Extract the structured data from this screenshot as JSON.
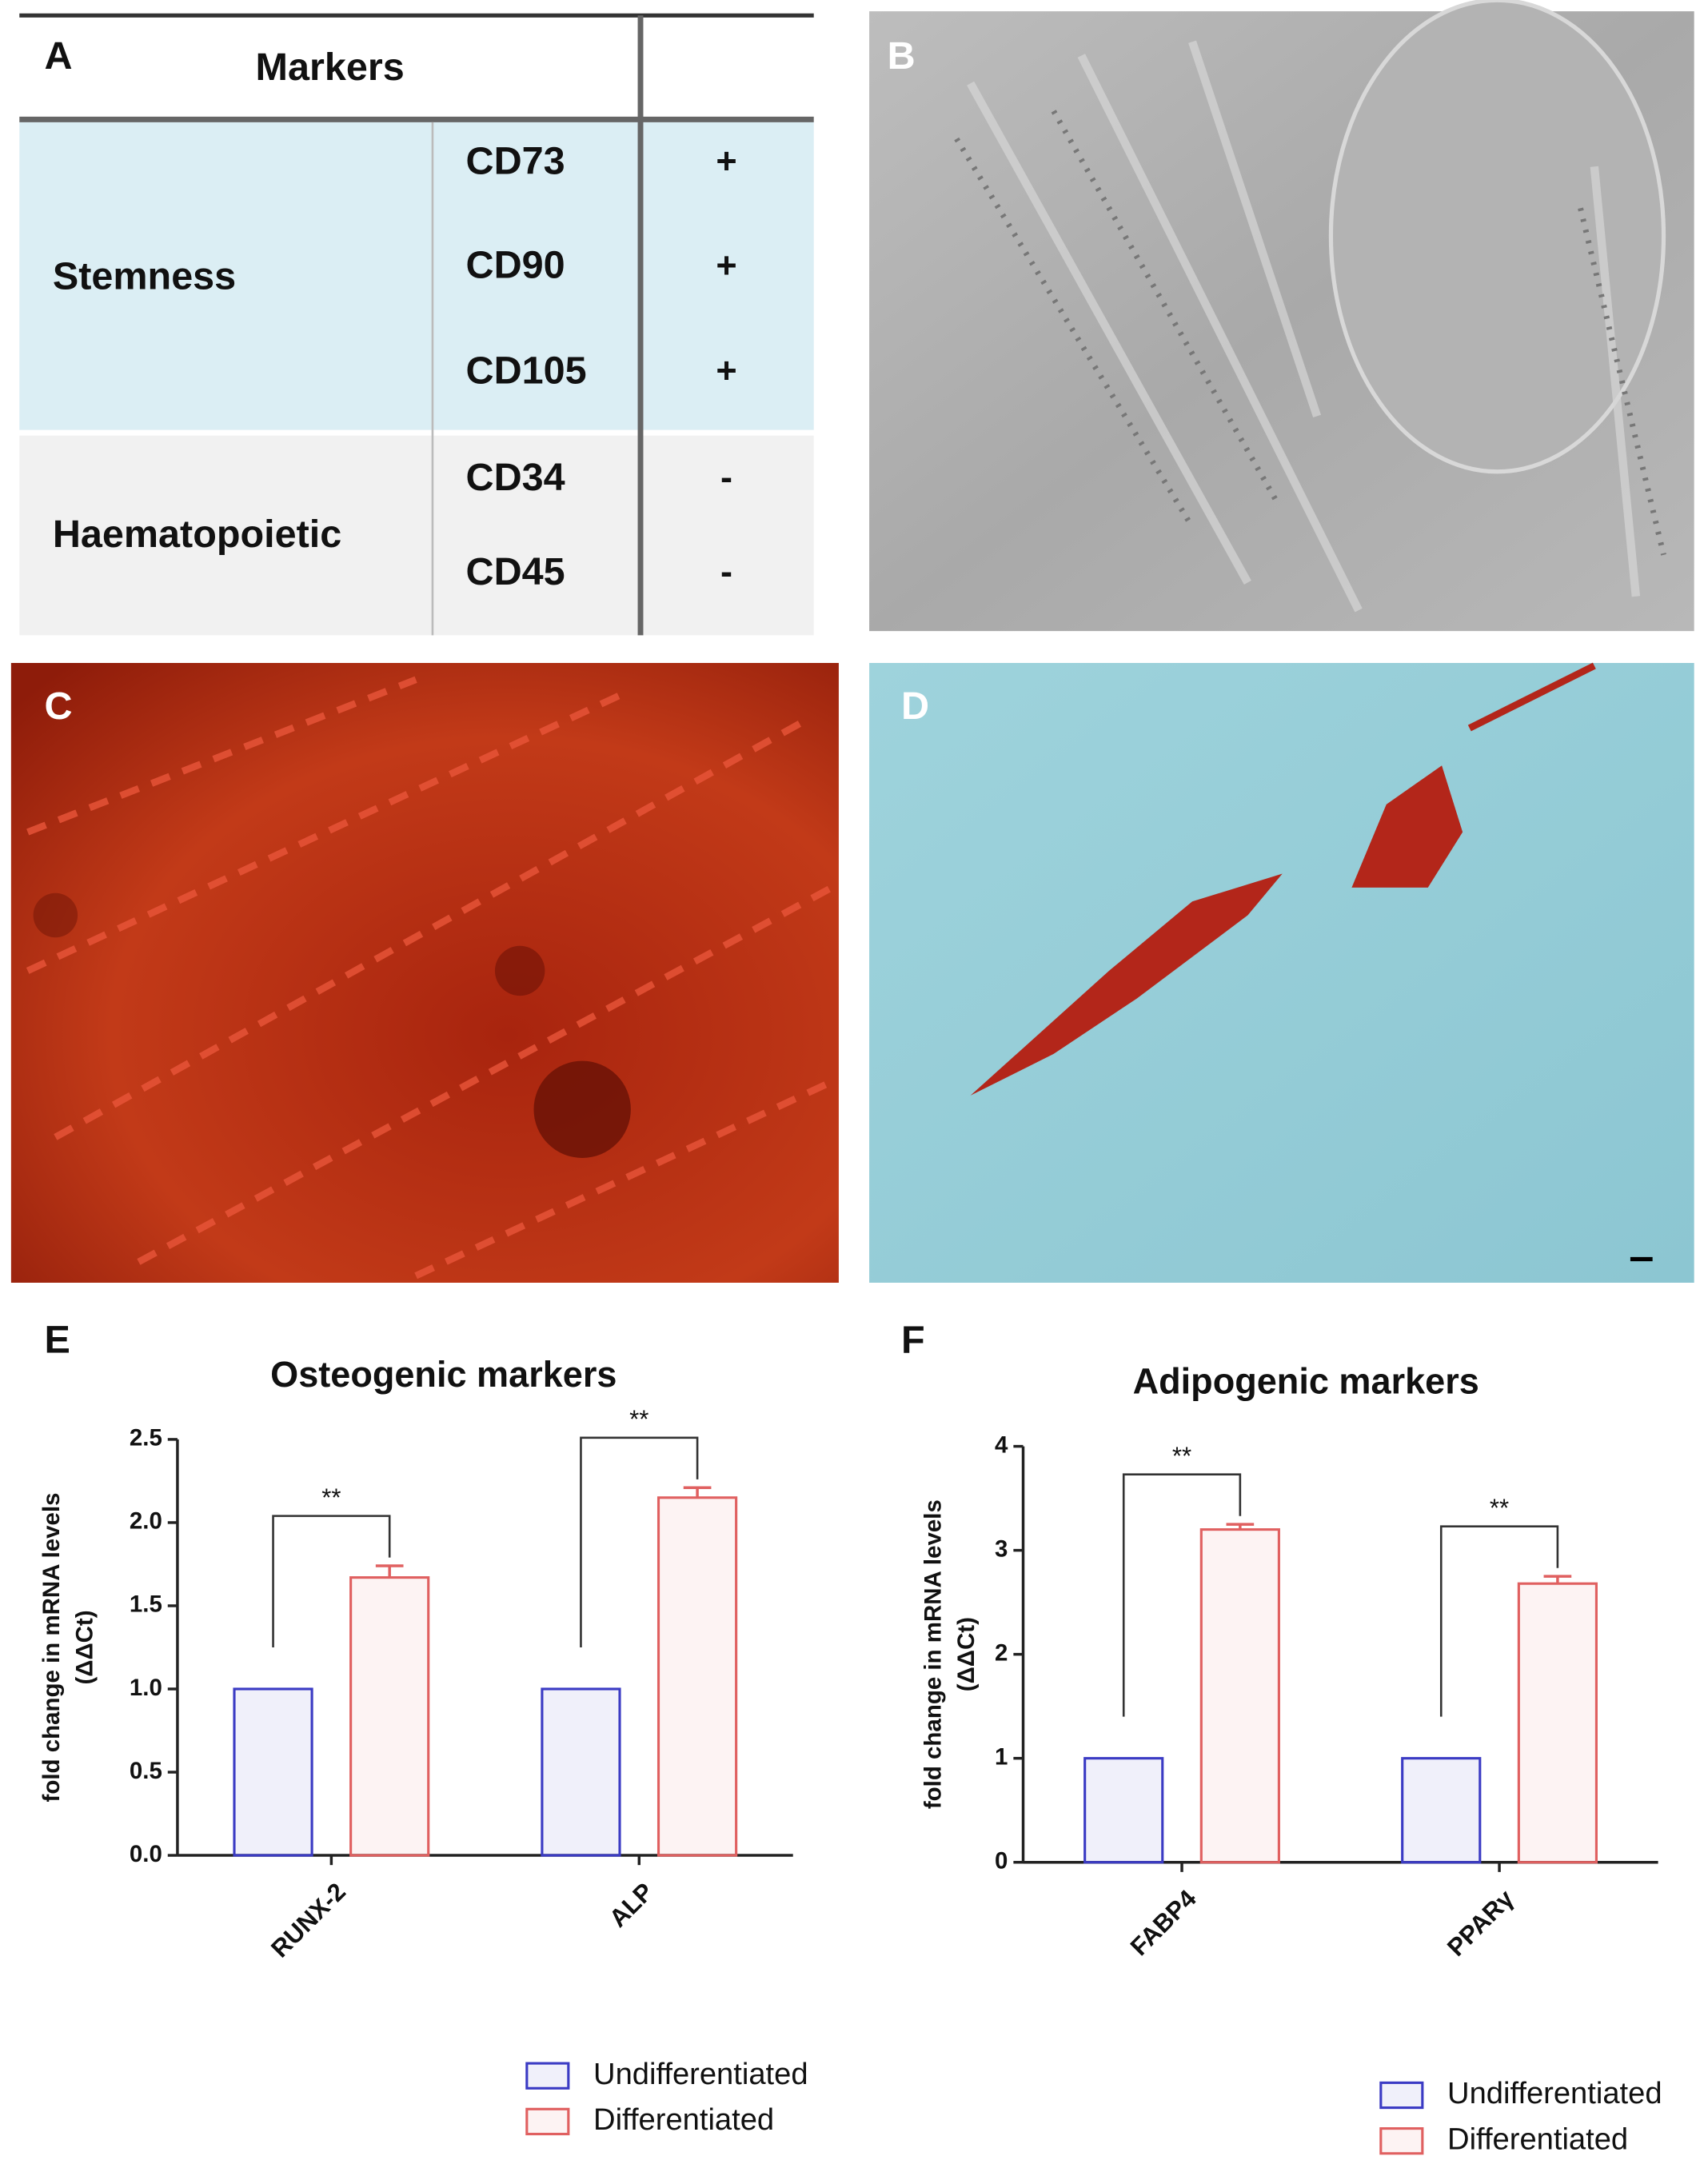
{
  "table": {
    "panel_label": "A",
    "header": "Markers",
    "groups": [
      {
        "name": "Stemness",
        "markers": [
          {
            "name": "CD73",
            "expression": "+"
          },
          {
            "name": "CD90",
            "expression": "+"
          },
          {
            "name": "CD105",
            "expression": "+"
          }
        ]
      },
      {
        "name": "Haematopoietic",
        "markers": [
          {
            "name": "CD34",
            "expression": "-"
          },
          {
            "name": "CD45",
            "expression": "-"
          }
        ]
      }
    ]
  },
  "images": [
    {
      "panel_label": "B"
    },
    {
      "panel_label": "C"
    },
    {
      "panel_label": "D"
    }
  ],
  "chart_data": [
    {
      "type": "bar",
      "panel_label": "E",
      "title": "Osteogenic markers",
      "y_label": [
        "fold change in mRNA levels",
        "(ΔΔCt)"
      ],
      "categories": [
        "RUNX-2",
        "ALP"
      ],
      "series": [
        {
          "name": "Undifferentiated",
          "color": "#3b3bc4",
          "values": [
            1,
            1
          ]
        },
        {
          "name": "Differentiated",
          "color": "#e06060",
          "values": [
            1.67,
            2.15
          ],
          "errors": [
            0.07,
            0.06
          ]
        }
      ],
      "significance": [
        "**",
        "**"
      ],
      "ylim": [
        0,
        2.5
      ],
      "yticks": [
        {
          "value": 0,
          "label": "0.0"
        },
        {
          "value": 0.5,
          "label": "0.5"
        },
        {
          "value": 1,
          "label": "1.0"
        },
        {
          "value": 1.5,
          "label": "1.5"
        },
        {
          "value": 2,
          "label": "2.0"
        },
        {
          "value": 2.5,
          "label": "2.5"
        }
      ]
    },
    {
      "type": "bar",
      "panel_label": "F",
      "title": "Adipogenic markers",
      "y_label": [
        "fold change in mRNA levels",
        "(ΔΔCt)"
      ],
      "categories": [
        "FABP4",
        "PPARγ"
      ],
      "series": [
        {
          "name": "Undifferentiated",
          "color": "#3b3bc4",
          "values": [
            1,
            1
          ]
        },
        {
          "name": "Differentiated",
          "color": "#e06060",
          "values": [
            3.2,
            2.68
          ],
          "errors": [
            0.05,
            0.07
          ]
        }
      ],
      "significance": [
        "**",
        "**"
      ],
      "ylim": [
        0,
        4
      ],
      "yticks": [
        0,
        1,
        2,
        3,
        4
      ]
    }
  ]
}
